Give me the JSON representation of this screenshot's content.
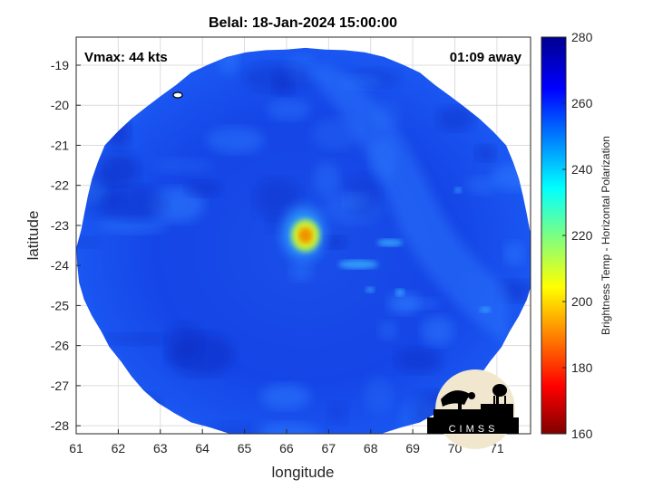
{
  "figure": {
    "title": "Belal: 18-Jan-2024 15:00:00",
    "vmax_label": "Vmax: 44 kts",
    "time_offset_label": "01:09 away",
    "logo_text": "CIMSS"
  },
  "chart_data": {
    "type": "heatmap",
    "title": "Belal: 18-Jan-2024 15:00:00",
    "xlabel": "longitude",
    "ylabel": "latitude",
    "xlim": [
      61,
      71.8
    ],
    "ylim": [
      -28.2,
      -18.3
    ],
    "x_ticks": [
      61,
      62,
      63,
      64,
      65,
      66,
      67,
      68,
      69,
      70,
      71
    ],
    "y_ticks": [
      -19,
      -20,
      -21,
      -22,
      -23,
      -24,
      -25,
      -26,
      -27,
      -28
    ],
    "grid": true,
    "colorbar": {
      "label": "Brightness Temp - Horizontal Polarization",
      "range": [
        160,
        280
      ],
      "ticks": [
        160,
        180,
        200,
        220,
        240,
        260,
        280
      ],
      "colormap": "jet"
    },
    "swath_edge": {
      "center": [
        66.45,
        -23.55
      ],
      "lon_radius": 5.4,
      "lat_radius": 5.0
    },
    "features": [
      {
        "name": "eye",
        "lon": 66.45,
        "lat": -23.25,
        "tb": 195
      },
      {
        "name": "eyewall",
        "lon": 66.4,
        "lat": -23.2,
        "tb": 230
      },
      {
        "name": "background",
        "tb": 262
      }
    ],
    "colors": {
      "swath_base": "#1848ee",
      "swath_dark": "#0d2fc4",
      "swath_light": "#2f7bff",
      "eye": "#f2e500",
      "eye_core": "#e09000"
    }
  }
}
